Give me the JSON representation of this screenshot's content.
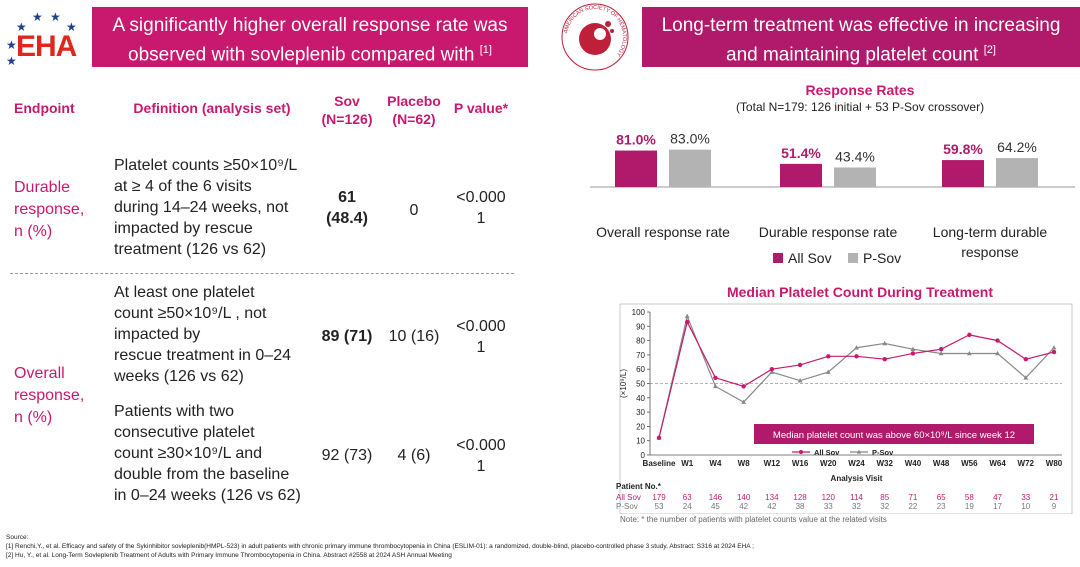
{
  "header": {
    "logo_text": "EHA",
    "left_title_line1": "A significantly higher overall response rate was",
    "left_title_line2": "observed with sovleplenib compared with",
    "left_ref": "[1]",
    "ash_logo_text": "AMERICAN SOCIETY OF HEMATOLOGY",
    "right_title_line1": "Long-term treatment was effective in increasing",
    "right_title_line2": "and maintaining platelet count",
    "right_ref": "[2]"
  },
  "table": {
    "headers": {
      "endpoint": "Endpoint",
      "definition": "Definition (analysis set)",
      "sov_line1": "Sov",
      "sov_line2": "(N=126)",
      "placebo_line1": "Placebo",
      "placebo_line2": "(N=62)",
      "pvalue": "P value*"
    },
    "durable": {
      "endpoint_lines": [
        "Durable",
        "response,",
        "n (%)"
      ],
      "definition_lines": [
        "Platelet counts ≥50×10⁹/L",
        "at  ≥ 4 of the 6 visits",
        "during 14–24 weeks, not",
        "impacted by rescue",
        "treatment (126 vs 62)"
      ],
      "sov_line1": "61",
      "sov_line2": "(48.4)",
      "placebo": "0",
      "pvalue_line1": "<0.000",
      "pvalue_line2": "1"
    },
    "overall": {
      "endpoint_lines": [
        "Overall",
        "response,",
        " n (%)"
      ],
      "row1": {
        "definition_lines": [
          "At least one platelet",
          "count ≥50×10⁹/L , not",
          "impacted by",
          "rescue treatment in 0–24",
          "weeks (126 vs 62)"
        ],
        "sov": "89 (71)",
        "placebo": "10 (16)",
        "pvalue_line1": "<0.000",
        "pvalue_line2": "1"
      },
      "row2": {
        "definition_lines": [
          "Patients with two",
          "consecutive platelet",
          "count ≥30×10⁹/L and",
          "double from the baseline",
          "in 0–24 weeks (126 vs 62)"
        ],
        "sov": "92 (73)",
        "placebo": "4 (6)",
        "pvalue_line1": "<0.000",
        "pvalue_line2": "1"
      }
    }
  },
  "chart_data": [
    {
      "type": "bar",
      "title": "Response Rates",
      "subtitle": "(Total N=179: 126 initial + 53 P-Sov crossover)",
      "categories": [
        "Overall response rate",
        "Durable response rate",
        "Long-term durable response"
      ],
      "category_lines": [
        [
          "Overall response rate"
        ],
        [
          "Durable response rate"
        ],
        [
          "Long-term durable",
          "response"
        ]
      ],
      "series": [
        {
          "name": "All Sov",
          "values": [
            81.0,
            51.4,
            59.8
          ],
          "labels": [
            "81.0%",
            "51.4%",
            "59.8%"
          ],
          "color": "#b11a6a"
        },
        {
          "name": "P-Sov",
          "values": [
            83.0,
            43.4,
            64.2
          ],
          "labels": [
            "83.0%",
            "43.4%",
            "64.2%"
          ],
          "color": "#b3b3b3"
        }
      ],
      "ylim": [
        0,
        100
      ],
      "legend": "bottom"
    },
    {
      "type": "line",
      "title": "Median Platelet Count During Treatment",
      "xlabel": "Analysis Visit",
      "ylabel": "(×10⁹/L)",
      "ylim": [
        0,
        100
      ],
      "yticks": [
        0,
        10,
        20,
        30,
        40,
        50,
        60,
        70,
        80,
        90,
        100
      ],
      "categories": [
        "Baseline",
        "W1",
        "W4",
        "W8",
        "W12",
        "W16",
        "W20",
        "W24",
        "W32",
        "W40",
        "W48",
        "W56",
        "W64",
        "W72",
        "W80"
      ],
      "series": [
        {
          "name": "All Sov",
          "values": [
            12,
            93,
            54,
            48,
            60,
            63,
            69,
            69,
            67,
            71,
            74,
            84,
            80,
            67,
            72
          ],
          "color": "#c8196e"
        },
        {
          "name": "P-Sov",
          "values": [
            12,
            97,
            48,
            37,
            58,
            52,
            58,
            75,
            78,
            74,
            71,
            71,
            71,
            54,
            75
          ],
          "color": "#888888"
        }
      ],
      "reference_line": 50,
      "annotation": "Median platelet count was above 60×10⁹/L since week 12",
      "legend": "bottom-center",
      "patient_no_label": "Patient No.*",
      "patients": {
        "all_sov_label": "All Sov",
        "p_sov_label": "P-Sov",
        "all_sov": [
          "179",
          "63",
          "146",
          "140",
          "134",
          "128",
          "120",
          "114",
          "85",
          "71",
          "65",
          "58",
          "47",
          "33",
          "21"
        ],
        "p_sov": [
          "53",
          "24",
          "45",
          "42",
          "42",
          "38",
          "33",
          "32",
          "32",
          "22",
          "23",
          "19",
          "17",
          "10",
          "9"
        ]
      }
    }
  ],
  "footer": {
    "source_label": "Source:",
    "ref1": "[1] Renchi,Y., et al. Efficacy and safety of the Sykinhibitor sovleplenib(HMPL-523) in adult patients with chronic primary immune thrombocytopenia in China (ESLIM-01):  a randomized, double-blind, placebo-controlled phase 3 study. Abstract: S316 at 2024 EHA ;",
    "ref2": "[2] Hu, Y., et al. Long-Term Sovleplenib Treatment of Adults with Primary Immune Thrombocytopenia in China. Abstract #2558 at 2024 ASH Annual Meeting",
    "note": "Note: * the number of patients with platelet counts value at the related visits"
  }
}
